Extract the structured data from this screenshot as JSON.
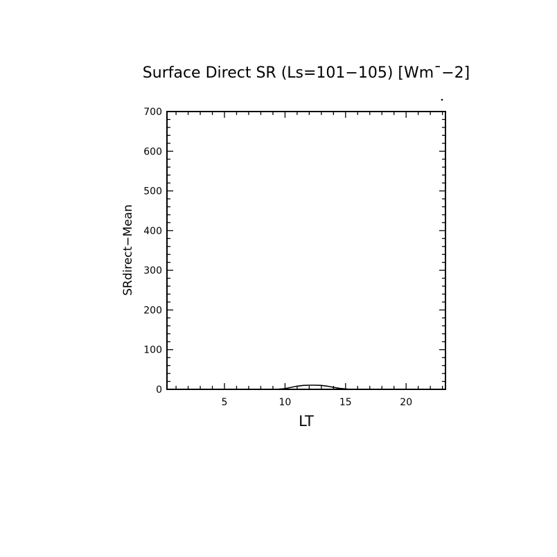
{
  "chart_data": {
    "type": "line",
    "title": "Surface Direct SR (Ls=101−105) [Wm¯−2]",
    "xlabel": "LT",
    "ylabel": "SRdirect−Mean",
    "xlim": [
      0.25,
      23.25
    ],
    "ylim": [
      0,
      700
    ],
    "xticks": [
      5,
      10,
      15,
      20
    ],
    "xtick_labels": [
      "5",
      "10",
      "15",
      "20"
    ],
    "yticks": [
      0,
      100,
      200,
      300,
      400,
      500,
      600,
      700
    ],
    "ytick_labels": [
      "0",
      "100",
      "200",
      "300",
      "400",
      "500",
      "600",
      "700"
    ],
    "grid": false,
    "line_color": "#000000",
    "series": [
      {
        "x": [
          9.0,
          9.5,
          10.0,
          10.5,
          11.0,
          11.5,
          12.0,
          12.5,
          13.0,
          13.5,
          14.0,
          14.5,
          15.0,
          15.5
        ],
        "values": [
          0,
          0.5,
          2,
          5,
          8,
          10,
          10.5,
          10.5,
          10,
          8,
          5,
          2.5,
          1,
          0
        ]
      }
    ]
  }
}
